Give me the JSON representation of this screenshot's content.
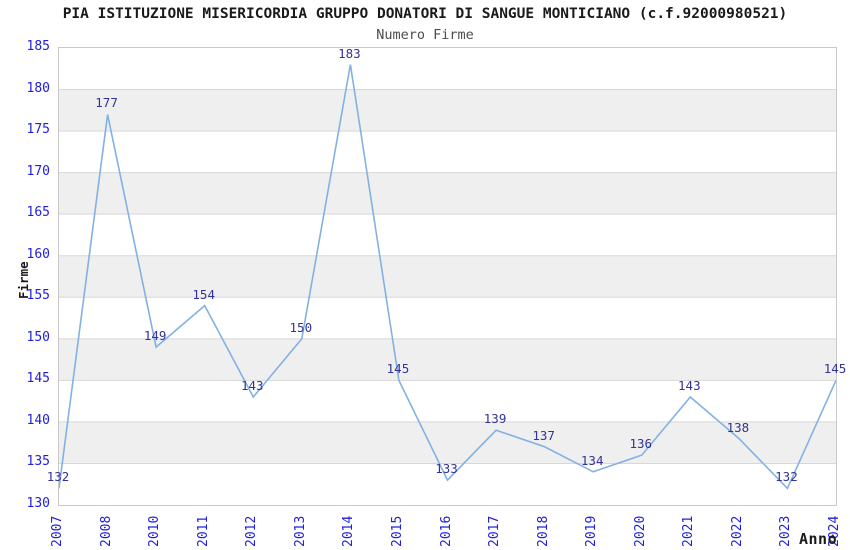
{
  "chart_data": {
    "type": "line",
    "title": "PIA ISTITUZIONE MISERICORDIA GRUPPO DONATORI DI SANGUE MONTICIANO (c.f.92000980521)",
    "subtitle": "Numero Firme",
    "xlabel": "Anno",
    "ylabel": "Firme",
    "categories": [
      "2007",
      "2008",
      "2010",
      "2011",
      "2012",
      "2013",
      "2014",
      "2015",
      "2016",
      "2017",
      "2018",
      "2019",
      "2020",
      "2021",
      "2022",
      "2023",
      "2024"
    ],
    "values": [
      132,
      177,
      149,
      154,
      143,
      150,
      183,
      145,
      133,
      139,
      137,
      134,
      136,
      143,
      138,
      132,
      145
    ],
    "ylim": [
      130,
      185
    ],
    "ytick_step": 5,
    "grid": true,
    "legend_position": "none",
    "band_pattern": "alternating-horizontal",
    "colors": {
      "line": "#82b1e3",
      "tick_label": "#2121dd",
      "data_label": "#333399",
      "band_gray": "#efefef",
      "band_white": "#ffffff",
      "gridline": "#d8d8d8",
      "plot_border": "#c9c9c9",
      "title": "#1a1a1a",
      "subtitle": "#4d4d4d",
      "axis_title": "#1a1a1a",
      "background": "#ffffff"
    }
  }
}
